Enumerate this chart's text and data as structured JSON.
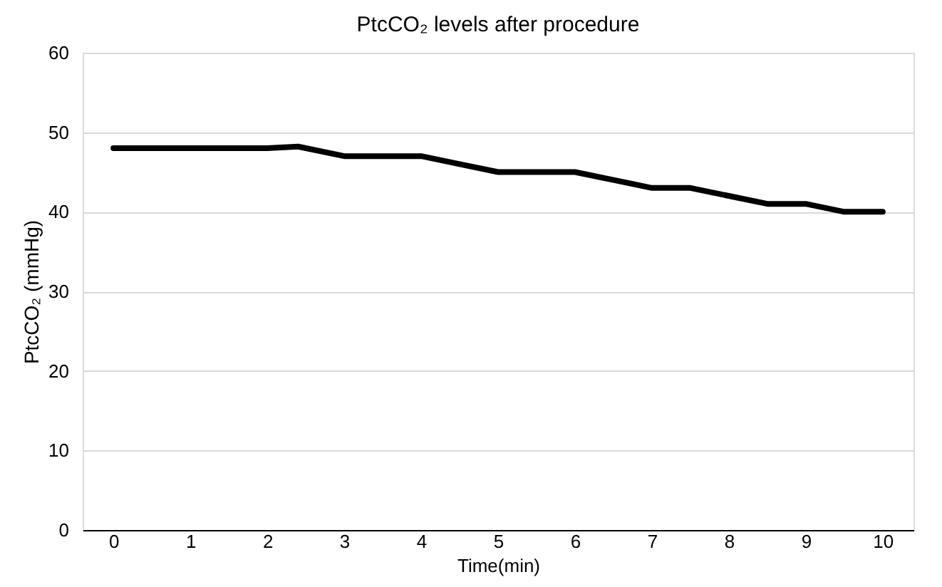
{
  "chart_data": {
    "type": "line",
    "title": "PtcCO₂ levels after procedure",
    "xlabel": "Time(min)",
    "ylabel": "PtcCO₂ (mmHg)",
    "x": [
      0,
      0.5,
      1,
      1.5,
      2,
      2.4,
      3,
      3.5,
      4,
      4.5,
      5,
      5.5,
      6,
      6.5,
      7,
      7.5,
      8,
      8.5,
      9,
      9.5,
      10
    ],
    "series": [
      {
        "color": "#000000",
        "values": [
          48,
          48,
          48,
          48,
          48,
          48.2,
          47,
          47,
          47,
          46,
          45,
          45,
          45,
          44,
          43,
          43,
          42,
          41,
          41,
          40,
          40
        ]
      }
    ],
    "xlim": [
      -0.4,
      10.4
    ],
    "xticks": [
      0,
      1,
      2,
      3,
      4,
      5,
      6,
      7,
      8,
      9,
      10
    ],
    "ylim": [
      0,
      60
    ],
    "yticks": [
      0,
      10,
      20,
      30,
      40,
      50,
      60
    ],
    "grid": "y",
    "marker": "none",
    "line_style": "solid"
  }
}
